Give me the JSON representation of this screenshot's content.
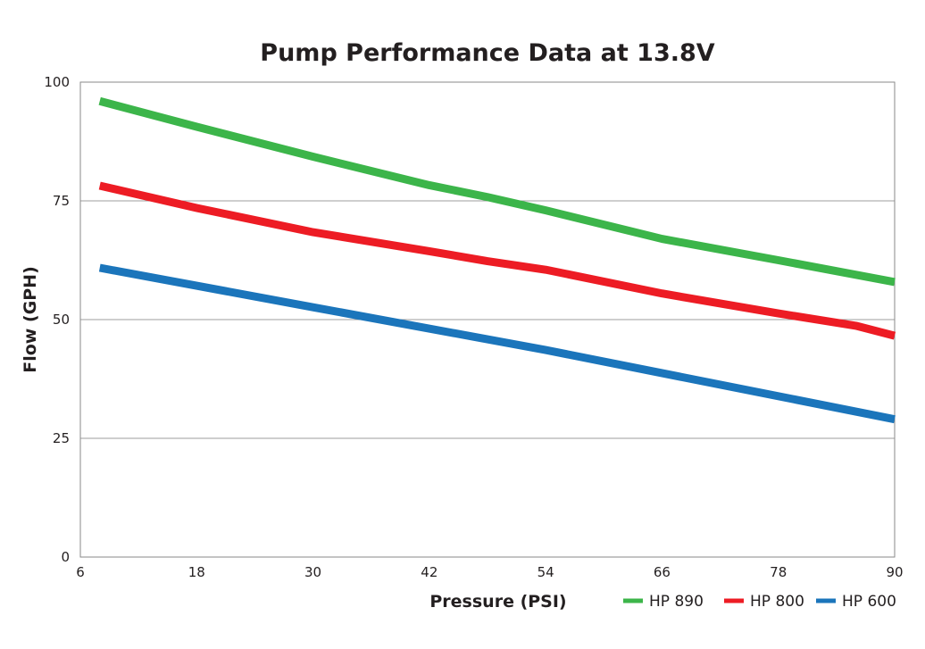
{
  "chart_data": {
    "type": "line",
    "title": "Pump Performance Data at 13.8V",
    "xlabel": "Pressure (PSI)",
    "ylabel": "Flow (GPH)",
    "xlim": [
      6,
      90
    ],
    "ylim": [
      0,
      100
    ],
    "xticks": [
      6,
      18,
      30,
      42,
      54,
      66,
      78,
      90
    ],
    "yticks": [
      0,
      25,
      50,
      75,
      100
    ],
    "grid": "horizontal",
    "legend": "bottom-right",
    "series": [
      {
        "name": "HP 890",
        "color": "#3cb54a",
        "x": [
          8,
          18,
          30,
          42,
          48,
          54,
          66,
          78,
          90
        ],
        "y": [
          96,
          90.6,
          84.3,
          78.3,
          75.8,
          73,
          67,
          62.5,
          57.9
        ]
      },
      {
        "name": "HP 800",
        "color": "#ed1c24",
        "x": [
          8,
          18,
          30,
          42,
          48,
          54,
          66,
          78,
          86,
          90
        ],
        "y": [
          78.2,
          73.5,
          68.4,
          64.4,
          62.3,
          60.5,
          55.5,
          51.3,
          48.7,
          46.6
        ]
      },
      {
        "name": "HP 600",
        "color": "#1b75bb",
        "x": [
          8,
          30,
          54,
          90
        ],
        "y": [
          60.9,
          52.6,
          43.6,
          29
        ]
      }
    ]
  }
}
